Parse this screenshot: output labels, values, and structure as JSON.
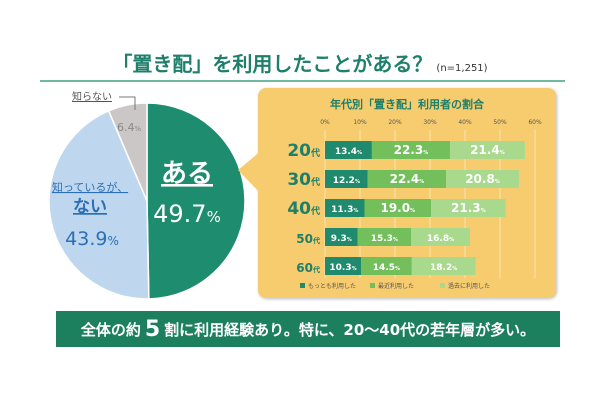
{
  "title": "「置き配」を利用したことがある？",
  "sample": "(n=1,251)",
  "banner": {
    "pre": "全体の約",
    "big": "5",
    "post": "割に利用経験あり。特に、20〜40代の若年層が多い。"
  },
  "colors": {
    "yes": "#1e8c6e",
    "no": "#bed7ef",
    "unknown": "#cbc7c7",
    "most": "#1f8a6e",
    "recent": "#72bf5c",
    "past": "#a8d98c",
    "panel": "#f7cc6e"
  },
  "chart_data": [
    {
      "type": "pie",
      "slices": [
        {
          "label": "ある",
          "value": 49.7,
          "display": "49.7",
          "unit": "%"
        },
        {
          "label_line1": "知っているが、",
          "label": "ない",
          "value": 43.9,
          "display": "43.9",
          "unit": "%"
        },
        {
          "label": "知らない",
          "value": 6.4,
          "display": "6.4",
          "unit": "%"
        }
      ]
    },
    {
      "type": "bar",
      "stacked": true,
      "orientation": "horizontal",
      "title": "年代別「置き配」利用者の割合",
      "categories": [
        "20",
        "30",
        "40",
        "50",
        "60"
      ],
      "category_suffix": "代",
      "xlim": [
        0,
        60
      ],
      "ticks": [
        "0%",
        "10%",
        "20%",
        "30%",
        "40%",
        "50%",
        "60%"
      ],
      "series": [
        {
          "name": "もっとも利用した",
          "values": [
            13.4,
            12.2,
            11.3,
            9.3,
            10.3
          ]
        },
        {
          "name": "最近利用した",
          "values": [
            22.3,
            22.4,
            19.0,
            15.3,
            14.5
          ]
        },
        {
          "name": "過去に利用した",
          "values": [
            21.4,
            20.8,
            21.3,
            16.8,
            18.2
          ]
        }
      ],
      "unit": "%",
      "legend": "bottom"
    }
  ]
}
